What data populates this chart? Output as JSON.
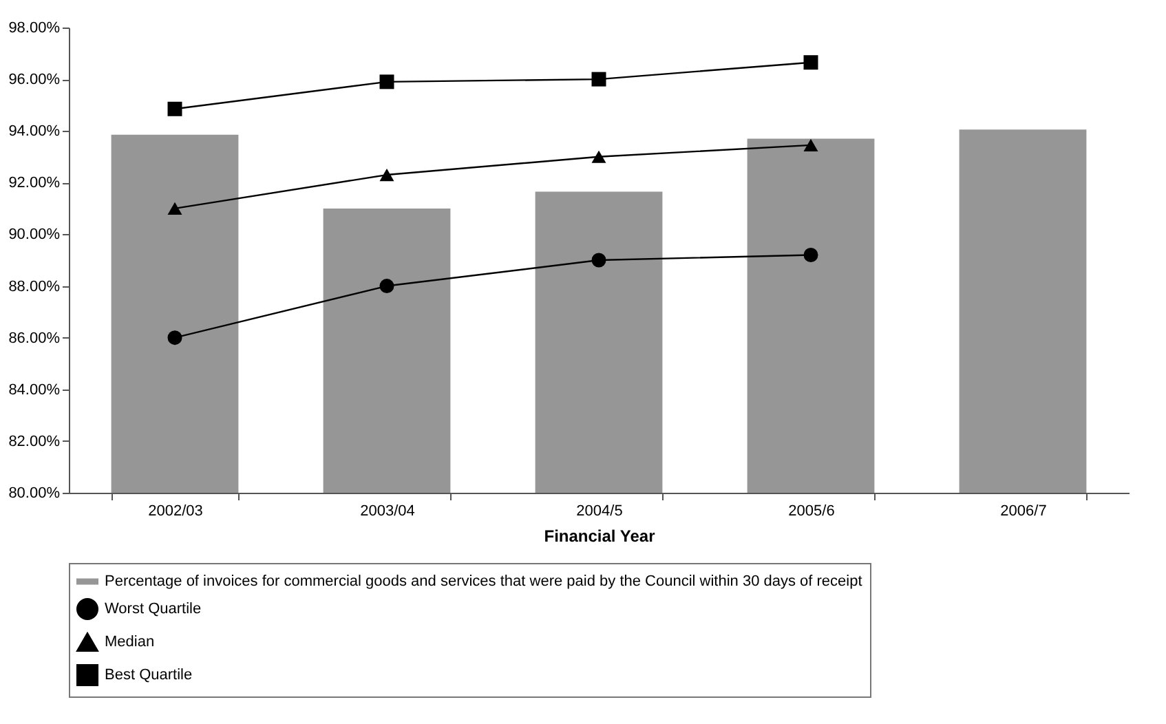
{
  "chart_data": {
    "type": "bar",
    "xlabel": "Financial Year",
    "categories": [
      "2002/03",
      "2003/04",
      "2004/5",
      "2005/6",
      "2006/7"
    ],
    "series": [
      {
        "name": "Percentage of invoices for commercial goods and services that were paid by the Council within 30 days of receipt",
        "type": "bar",
        "color": "#969696",
        "values": [
          93.85,
          91.0,
          91.65,
          93.7,
          94.05
        ]
      },
      {
        "name": "Worst Quartile",
        "type": "line",
        "color": "#000000",
        "marker": "circle",
        "values": [
          86.0,
          88.0,
          89.0,
          89.2,
          null
        ]
      },
      {
        "name": "Median",
        "type": "line",
        "color": "#000000",
        "marker": "triangle",
        "values": [
          91.0,
          92.3,
          93.0,
          93.45,
          null
        ]
      },
      {
        "name": "Best Quartile",
        "type": "line",
        "color": "#000000",
        "marker": "square",
        "values": [
          94.85,
          95.9,
          96.0,
          96.65,
          null
        ]
      }
    ],
    "ylim": [
      80,
      98
    ],
    "yticks": [
      {
        "value": 80,
        "label": "80.00%"
      },
      {
        "value": 82,
        "label": "82.00%"
      },
      {
        "value": 84,
        "label": "84.00%"
      },
      {
        "value": 86,
        "label": "86.00%"
      },
      {
        "value": 88,
        "label": "88.00%"
      },
      {
        "value": 90,
        "label": "90.00%"
      },
      {
        "value": 92,
        "label": "92.00%"
      },
      {
        "value": 94,
        "label": "94.00%"
      },
      {
        "value": 96,
        "label": "96.00%"
      },
      {
        "value": 98,
        "label": "98.00%"
      }
    ],
    "grid": false,
    "legend": "bottom"
  }
}
